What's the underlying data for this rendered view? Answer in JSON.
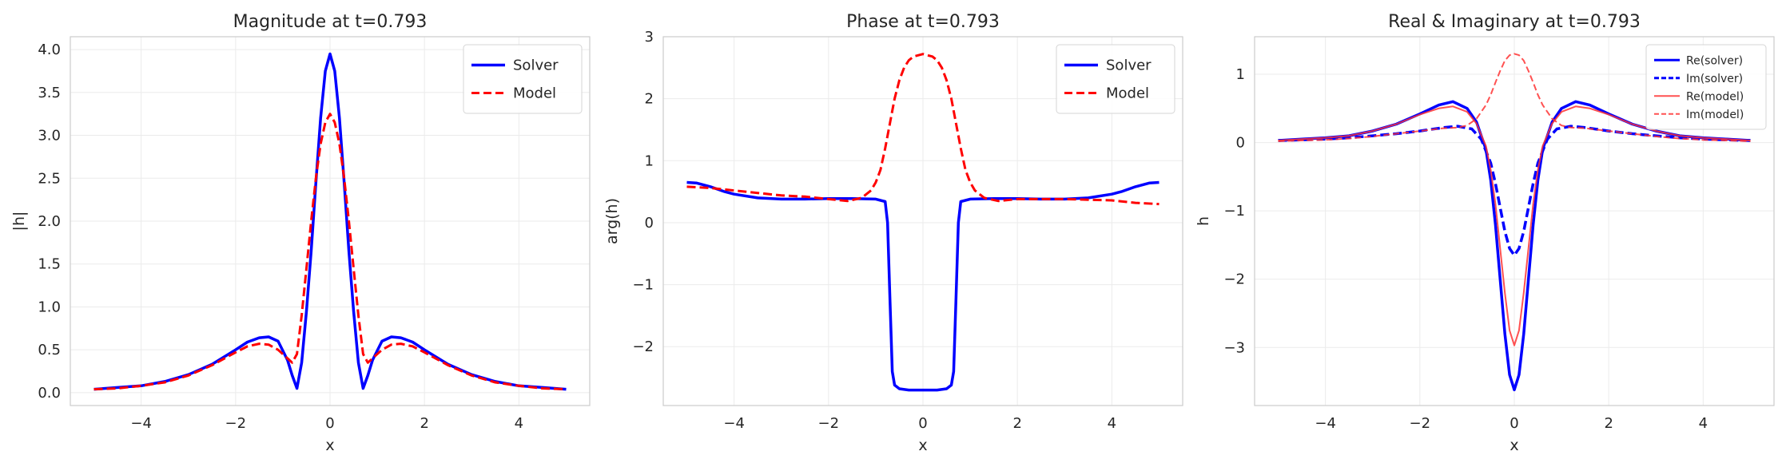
{
  "figure": {
    "background": "#ffffff",
    "grid_color": "#ebebeb",
    "frame_color": "#cccccc"
  },
  "chart_data": [
    {
      "type": "line",
      "title": "Magnitude at t=0.793",
      "xlabel": "x",
      "ylabel": "|h|",
      "xlim": [
        -5.5,
        5.5
      ],
      "ylim": [
        -0.15,
        4.15
      ],
      "xticks": [
        -4,
        -2,
        0,
        2,
        4
      ],
      "xtick_labels": [
        "−4",
        "−2",
        "0",
        "2",
        "4"
      ],
      "yticks": [
        0.0,
        0.5,
        1.0,
        1.5,
        2.0,
        2.5,
        3.0,
        3.5,
        4.0
      ],
      "ytick_labels": [
        "0.0",
        "0.5",
        "1.0",
        "1.5",
        "2.0",
        "2.5",
        "3.0",
        "3.5",
        "4.0"
      ],
      "grid": true,
      "legend": "top-right",
      "series": [
        {
          "name": "Solver",
          "color": "#0000ff",
          "style": "solid",
          "width": 3.5,
          "x": [
            -5,
            -4.5,
            -4,
            -3.5,
            -3,
            -2.5,
            -2,
            -1.75,
            -1.5,
            -1.3,
            -1.1,
            -0.9,
            -0.8,
            -0.7,
            -0.6,
            -0.5,
            -0.4,
            -0.3,
            -0.2,
            -0.1,
            0,
            0.1,
            0.2,
            0.3,
            0.4,
            0.5,
            0.6,
            0.7,
            0.8,
            0.9,
            1.1,
            1.3,
            1.5,
            1.75,
            2,
            2.5,
            3,
            3.5,
            4,
            4.5,
            5
          ],
          "y": [
            0.04,
            0.06,
            0.08,
            0.13,
            0.21,
            0.33,
            0.5,
            0.59,
            0.64,
            0.65,
            0.6,
            0.38,
            0.2,
            0.05,
            0.35,
            0.95,
            1.65,
            2.45,
            3.2,
            3.75,
            3.95,
            3.75,
            3.2,
            2.45,
            1.65,
            0.95,
            0.35,
            0.05,
            0.2,
            0.38,
            0.6,
            0.65,
            0.64,
            0.59,
            0.5,
            0.33,
            0.21,
            0.13,
            0.08,
            0.06,
            0.04
          ]
        },
        {
          "name": "Model",
          "color": "#ff0000",
          "style": "dashed",
          "width": 3,
          "x": [
            -5,
            -4.5,
            -4,
            -3.5,
            -3,
            -2.5,
            -2,
            -1.75,
            -1.5,
            -1.3,
            -1.1,
            -0.9,
            -0.8,
            -0.7,
            -0.6,
            -0.5,
            -0.4,
            -0.3,
            -0.2,
            -0.1,
            0,
            0.1,
            0.2,
            0.3,
            0.4,
            0.5,
            0.6,
            0.7,
            0.8,
            0.9,
            1.1,
            1.3,
            1.5,
            1.75,
            2,
            2.5,
            3,
            3.5,
            4,
            4.5,
            5
          ],
          "y": [
            0.04,
            0.05,
            0.08,
            0.12,
            0.2,
            0.32,
            0.47,
            0.54,
            0.57,
            0.56,
            0.5,
            0.4,
            0.35,
            0.45,
            0.9,
            1.45,
            2.0,
            2.5,
            2.9,
            3.15,
            3.25,
            3.15,
            2.9,
            2.5,
            2.0,
            1.45,
            0.9,
            0.45,
            0.35,
            0.4,
            0.5,
            0.56,
            0.57,
            0.54,
            0.47,
            0.32,
            0.2,
            0.12,
            0.08,
            0.05,
            0.04
          ]
        }
      ]
    },
    {
      "type": "line",
      "title": "Phase at t=0.793",
      "xlabel": "x",
      "ylabel": "arg(h)",
      "xlim": [
        -5.5,
        5.5
      ],
      "ylim": [
        -2.95,
        3.0
      ],
      "xticks": [
        -4,
        -2,
        0,
        2,
        4
      ],
      "xtick_labels": [
        "−4",
        "−2",
        "0",
        "2",
        "4"
      ],
      "yticks": [
        -2,
        -1,
        0,
        1,
        2,
        3
      ],
      "ytick_labels": [
        "−2",
        "−1",
        "0",
        "1",
        "2",
        "3"
      ],
      "grid": true,
      "legend": "top-right",
      "series": [
        {
          "name": "Solver",
          "color": "#0000ff",
          "style": "solid",
          "width": 3.5,
          "x": [
            -5,
            -4.8,
            -4.5,
            -4.2,
            -4,
            -3.5,
            -3,
            -2.5,
            -2,
            -1.5,
            -1,
            -0.8,
            -0.75,
            -0.7,
            -0.65,
            -0.6,
            -0.5,
            -0.3,
            0,
            0.3,
            0.5,
            0.6,
            0.65,
            0.7,
            0.75,
            0.8,
            1,
            1.5,
            2,
            2.5,
            3,
            3.5,
            4,
            4.2,
            4.5,
            4.8,
            5
          ],
          "y": [
            0.65,
            0.64,
            0.58,
            0.5,
            0.46,
            0.4,
            0.38,
            0.38,
            0.39,
            0.39,
            0.38,
            0.34,
            0.0,
            -1.2,
            -2.4,
            -2.62,
            -2.68,
            -2.7,
            -2.7,
            -2.7,
            -2.68,
            -2.62,
            -2.4,
            -1.2,
            0.0,
            0.34,
            0.38,
            0.39,
            0.39,
            0.38,
            0.38,
            0.4,
            0.46,
            0.5,
            0.58,
            0.64,
            0.65
          ]
        },
        {
          "name": "Model",
          "color": "#ff0000",
          "style": "dashed",
          "width": 3,
          "x": [
            -5,
            -4.5,
            -4,
            -3.5,
            -3,
            -2.5,
            -2,
            -1.6,
            -1.3,
            -1.1,
            -1.0,
            -0.9,
            -0.8,
            -0.7,
            -0.6,
            -0.5,
            -0.4,
            -0.3,
            -0.2,
            0,
            0.2,
            0.3,
            0.4,
            0.5,
            0.6,
            0.7,
            0.8,
            0.9,
            1.0,
            1.1,
            1.3,
            1.6,
            2,
            2.5,
            3,
            3.5,
            4,
            4.5,
            5
          ],
          "y": [
            0.58,
            0.56,
            0.52,
            0.48,
            0.44,
            0.42,
            0.38,
            0.35,
            0.4,
            0.52,
            0.65,
            0.85,
            1.2,
            1.6,
            2.0,
            2.3,
            2.5,
            2.62,
            2.68,
            2.72,
            2.68,
            2.62,
            2.5,
            2.3,
            2.0,
            1.6,
            1.2,
            0.85,
            0.65,
            0.52,
            0.4,
            0.35,
            0.38,
            0.38,
            0.38,
            0.37,
            0.36,
            0.32,
            0.3
          ]
        }
      ]
    },
    {
      "type": "line",
      "title": "Real & Imaginary at t=0.793",
      "xlabel": "x",
      "ylabel": "h",
      "xlim": [
        -5.5,
        5.5
      ],
      "ylim": [
        -3.85,
        1.55
      ],
      "xticks": [
        -4,
        -2,
        0,
        2,
        4
      ],
      "xtick_labels": [
        "−4",
        "−2",
        "0",
        "2",
        "4"
      ],
      "yticks": [
        -3,
        -2,
        -1,
        0,
        1
      ],
      "ytick_labels": [
        "−3",
        "−2",
        "−1",
        "0",
        "1"
      ],
      "grid": true,
      "legend": "top-right",
      "series": [
        {
          "name": "Re(solver)",
          "color": "#0000ff",
          "style": "solid",
          "width": 3.5,
          "x": [
            -5,
            -4.5,
            -4,
            -3.5,
            -3,
            -2.5,
            -2,
            -1.6,
            -1.3,
            -1.0,
            -0.8,
            -0.6,
            -0.5,
            -0.4,
            -0.3,
            -0.2,
            -0.1,
            0,
            0.1,
            0.2,
            0.3,
            0.4,
            0.5,
            0.6,
            0.8,
            1.0,
            1.3,
            1.6,
            2,
            2.5,
            3,
            3.5,
            4,
            4.5,
            5
          ],
          "y": [
            0.03,
            0.05,
            0.07,
            0.1,
            0.17,
            0.27,
            0.42,
            0.55,
            0.6,
            0.5,
            0.3,
            -0.1,
            -0.55,
            -1.2,
            -2.0,
            -2.8,
            -3.4,
            -3.62,
            -3.4,
            -2.8,
            -2.0,
            -1.2,
            -0.55,
            -0.1,
            0.3,
            0.5,
            0.6,
            0.55,
            0.42,
            0.27,
            0.17,
            0.1,
            0.07,
            0.05,
            0.03
          ]
        },
        {
          "name": "Im(solver)",
          "color": "#0000ff",
          "style": "dashed",
          "width": 3.5,
          "x": [
            -5,
            -4.5,
            -4,
            -3.5,
            -3,
            -2.5,
            -2,
            -1.5,
            -1.2,
            -0.9,
            -0.7,
            -0.5,
            -0.4,
            -0.3,
            -0.2,
            -0.1,
            0,
            0.1,
            0.2,
            0.3,
            0.4,
            0.5,
            0.7,
            0.9,
            1.2,
            1.5,
            2,
            2.5,
            3,
            3.5,
            4,
            4.5,
            5
          ],
          "y": [
            0.03,
            0.04,
            0.05,
            0.07,
            0.1,
            0.13,
            0.17,
            0.22,
            0.24,
            0.2,
            0.05,
            -0.3,
            -0.6,
            -0.95,
            -1.3,
            -1.55,
            -1.65,
            -1.55,
            -1.3,
            -0.95,
            -0.6,
            -0.3,
            0.05,
            0.2,
            0.24,
            0.22,
            0.17,
            0.13,
            0.1,
            0.07,
            0.05,
            0.04,
            0.03
          ]
        },
        {
          "name": "Re(model)",
          "color": "#ff3333",
          "style": "solid",
          "width": 2,
          "x": [
            -5,
            -4.5,
            -4,
            -3.5,
            -3,
            -2.5,
            -2,
            -1.6,
            -1.3,
            -1.0,
            -0.8,
            -0.6,
            -0.5,
            -0.4,
            -0.3,
            -0.2,
            -0.1,
            0,
            0.1,
            0.2,
            0.3,
            0.4,
            0.5,
            0.6,
            0.8,
            1.0,
            1.3,
            1.6,
            2,
            2.5,
            3,
            3.5,
            4,
            4.5,
            5
          ],
          "y": [
            0.03,
            0.05,
            0.07,
            0.1,
            0.17,
            0.27,
            0.41,
            0.5,
            0.53,
            0.45,
            0.28,
            -0.05,
            -0.4,
            -0.9,
            -1.55,
            -2.2,
            -2.75,
            -2.97,
            -2.75,
            -2.2,
            -1.55,
            -0.9,
            -0.4,
            -0.05,
            0.28,
            0.45,
            0.53,
            0.5,
            0.41,
            0.27,
            0.17,
            0.1,
            0.07,
            0.05,
            0.03
          ]
        },
        {
          "name": "Im(model)",
          "color": "#ff3333",
          "style": "dashed",
          "width": 2,
          "x": [
            -5,
            -4.5,
            -4,
            -3.5,
            -3,
            -2.5,
            -2,
            -1.5,
            -1.2,
            -1.0,
            -0.8,
            -0.6,
            -0.5,
            -0.4,
            -0.3,
            -0.2,
            -0.1,
            0,
            0.1,
            0.2,
            0.3,
            0.4,
            0.5,
            0.6,
            0.8,
            1.0,
            1.2,
            1.5,
            2,
            2.5,
            3,
            3.5,
            4,
            4.5,
            5
          ],
          "y": [
            0.02,
            0.03,
            0.04,
            0.06,
            0.09,
            0.13,
            0.17,
            0.21,
            0.22,
            0.25,
            0.35,
            0.55,
            0.7,
            0.88,
            1.05,
            1.2,
            1.28,
            1.3,
            1.28,
            1.2,
            1.05,
            0.88,
            0.7,
            0.55,
            0.35,
            0.25,
            0.22,
            0.21,
            0.17,
            0.13,
            0.09,
            0.06,
            0.04,
            0.03,
            0.02
          ]
        }
      ]
    }
  ]
}
